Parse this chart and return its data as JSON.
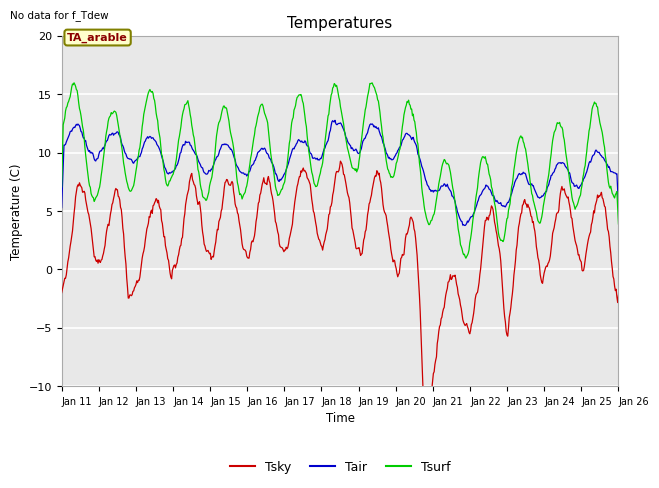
{
  "title": "Temperatures",
  "xlabel": "Time",
  "ylabel": "Temperature (C)",
  "note": "No data for f_Tdew",
  "annotation": "TA_arable",
  "xlim": [
    11,
    26
  ],
  "ylim": [
    -10,
    20
  ],
  "yticks": [
    -10,
    -5,
    0,
    5,
    10,
    15,
    20
  ],
  "xtick_labels": [
    "Jan 11",
    "Jan 12",
    "Jan 13",
    "Jan 14",
    "Jan 15",
    "Jan 16",
    "Jan 17",
    "Jan 18",
    "Jan 19",
    "Jan 20",
    "Jan 21",
    "Jan 22",
    "Jan 23",
    "Jan 24",
    "Jan 25",
    "Jan 26"
  ],
  "bg_color": "#e8e8e8",
  "grid_color": "#ffffff",
  "Tsky_color": "#cc0000",
  "Tair_color": "#0000cc",
  "Tsurf_color": "#00cc00",
  "legend_labels": [
    "Tsky",
    "Tair",
    "Tsurf"
  ]
}
